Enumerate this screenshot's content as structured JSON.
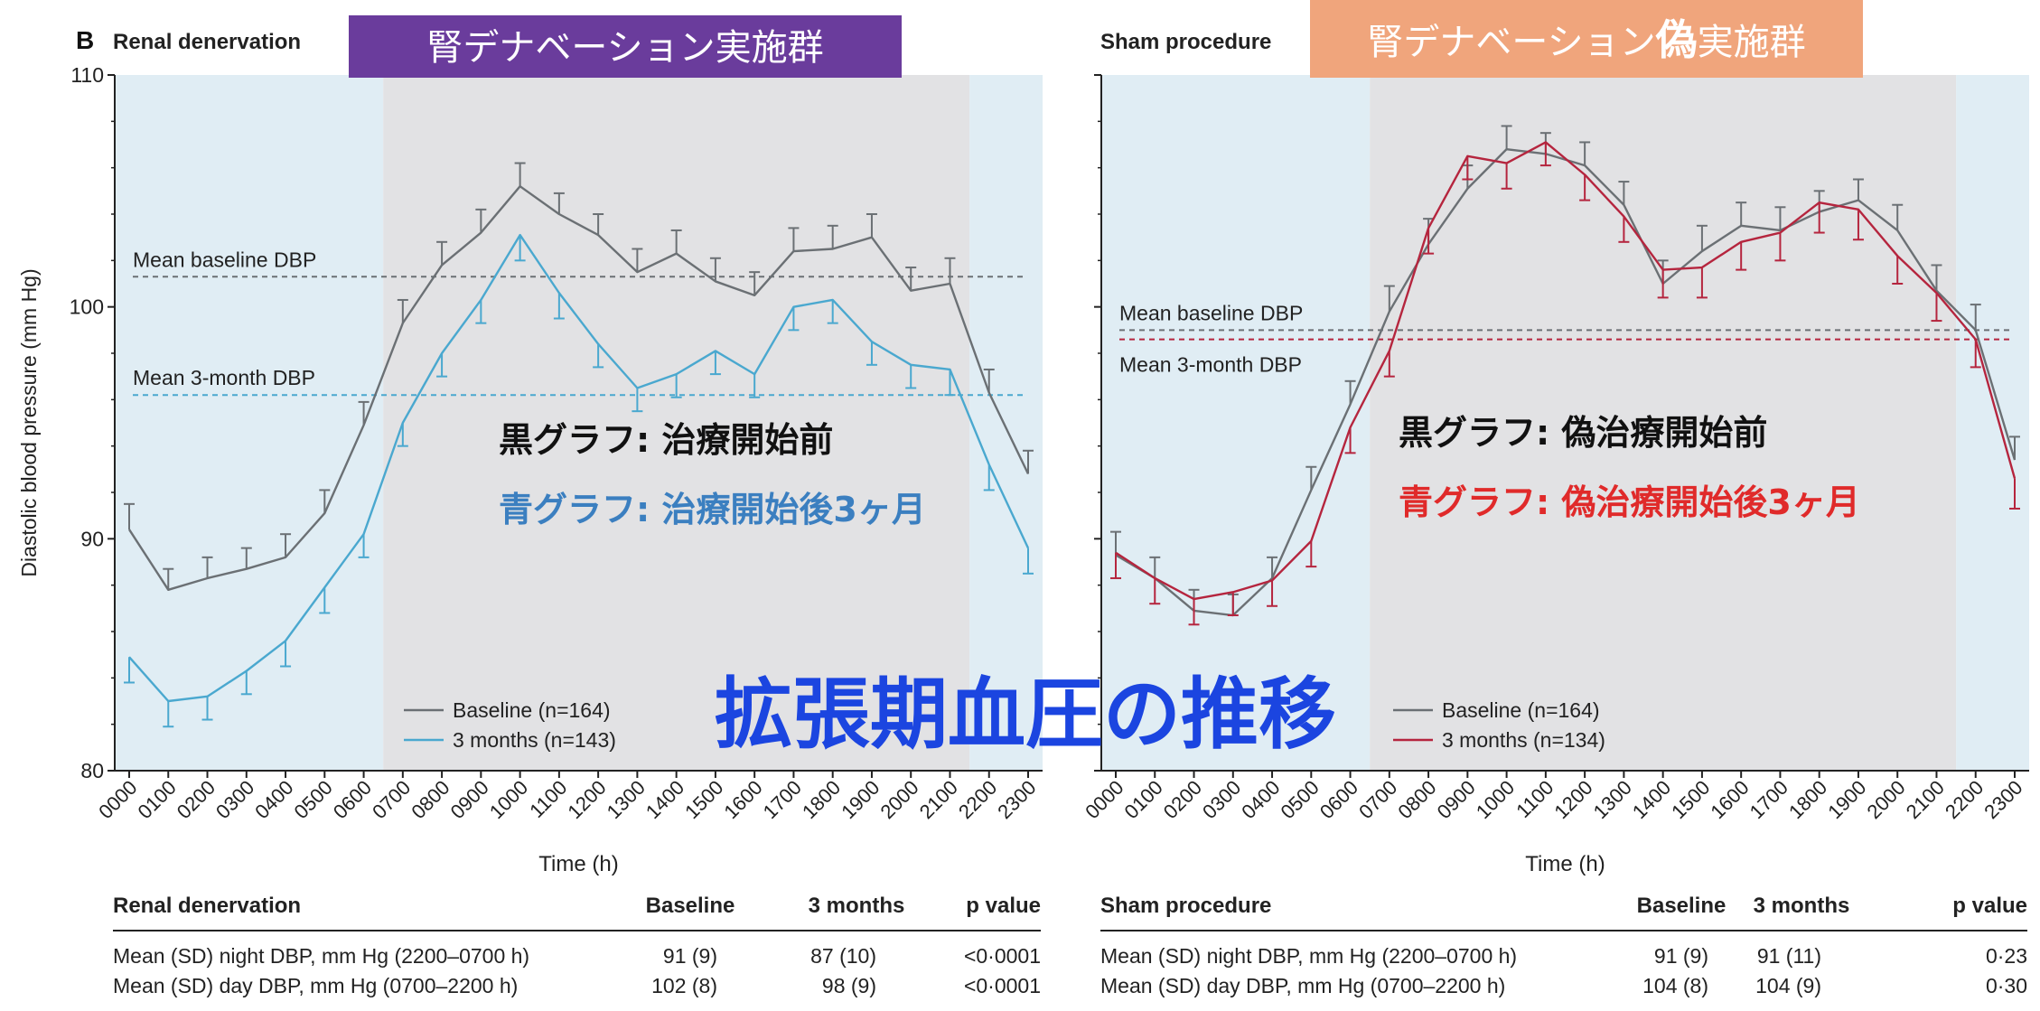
{
  "figure_label": "B",
  "main_title": "拡張期血圧の推移",
  "y_axis_label": "Diastolic blood pressure (mm Hg)",
  "x_axis_label": "Time (h)",
  "colors": {
    "baseline": "#6b7074",
    "rdn_3month": "#4aa8cf",
    "sham_3month": "#b5253e",
    "night_shade": "#e0edf4",
    "day_shade": "#e2e2e4",
    "rdn_banner": "#6a3c9c",
    "sham_banner": "#f0a57c",
    "title_blue": "#1b45e0",
    "rdn_note_blue": "#3b7fc0",
    "sham_note_red": "#e02a2a"
  },
  "panels": [
    {
      "id": "rdn",
      "title": "Renal denervation",
      "banner": "腎デナベーション実施群",
      "notes": [
        "黒グラフ: 治療開始前",
        "青グラフ: 治療開始後3ヶ月"
      ],
      "ref_lines": [
        {
          "label": "Mean baseline DBP",
          "value": 101.3,
          "series": 0
        },
        {
          "label": "Mean 3-month DBP",
          "value": 96.2,
          "series": 1
        }
      ],
      "table": {
        "headers": [
          "Renal denervation",
          "Baseline",
          "3 months",
          "p value"
        ],
        "rows": [
          [
            "Mean (SD) night DBP, mm Hg (2200–0700 h)",
            "91 (9)",
            "87 (10)",
            "<0·0001"
          ],
          [
            "Mean (SD) day DBP, mm Hg (0700–2200 h)",
            "102 (8)",
            "98 (9)",
            "<0·0001"
          ]
        ]
      }
    },
    {
      "id": "sham",
      "title": "Sham procedure",
      "banner_parts": [
        "腎デナベーション",
        "偽",
        "実施群"
      ],
      "notes": [
        "黒グラフ: 偽治療開始前",
        "青グラフ: 偽治療開始後3ヶ月"
      ],
      "ref_lines": [
        {
          "label": "Mean baseline DBP",
          "value": 99.0,
          "series": 0
        },
        {
          "label": "Mean 3-month DBP",
          "value": 98.6,
          "series": 1
        }
      ],
      "table": {
        "headers": [
          "Sham procedure",
          "Baseline",
          "3 months",
          "p value"
        ],
        "rows": [
          [
            "Mean (SD) night DBP, mm Hg (2200–0700 h)",
            "91 (9)",
            "91 (11)",
            "0·23"
          ],
          [
            "Mean (SD) day DBP, mm Hg (0700–2200 h)",
            "104 (8)",
            "104 (9)",
            "0·30"
          ]
        ]
      }
    }
  ],
  "chart_data": [
    {
      "type": "line",
      "title": "Renal denervation",
      "x": [
        "0000",
        "0100",
        "0200",
        "0300",
        "0400",
        "0500",
        "0600",
        "0700",
        "0800",
        "0900",
        "1000",
        "1100",
        "1200",
        "1300",
        "1400",
        "1500",
        "1600",
        "1700",
        "1800",
        "1900",
        "2000",
        "2100",
        "2200",
        "2300"
      ],
      "ylim": [
        80,
        110
      ],
      "yticks": [
        80,
        90,
        100,
        110
      ],
      "day_window": [
        "0700",
        "2200"
      ],
      "xlabel": "Time (h)",
      "ylabel": "Diastolic blood pressure (mm Hg)",
      "series": [
        {
          "name": "Baseline (n=164)",
          "values": [
            90.4,
            87.8,
            88.3,
            88.7,
            89.2,
            91.1,
            94.9,
            99.3,
            101.8,
            103.2,
            105.2,
            104.0,
            103.1,
            101.5,
            102.3,
            101.1,
            100.5,
            102.4,
            102.5,
            103.0,
            100.7,
            101.0,
            96.3,
            92.8
          ],
          "errors": [
            1.1,
            0.9,
            0.9,
            0.9,
            1.0,
            1.0,
            1.0,
            1.0,
            1.0,
            1.0,
            1.0,
            0.9,
            0.9,
            1.0,
            1.0,
            1.0,
            1.0,
            1.0,
            1.0,
            1.0,
            1.0,
            1.1,
            1.0,
            1.0
          ]
        },
        {
          "name": "3 months (n=143)",
          "values": [
            84.9,
            83.0,
            83.2,
            84.3,
            85.6,
            87.9,
            90.2,
            95.0,
            98.0,
            100.3,
            103.1,
            100.6,
            98.4,
            96.5,
            97.1,
            98.1,
            97.1,
            100.0,
            100.3,
            98.5,
            97.5,
            97.3,
            93.2,
            89.6
          ],
          "errors": [
            1.1,
            1.1,
            1.0,
            1.0,
            1.1,
            1.1,
            1.0,
            1.0,
            1.0,
            1.0,
            1.1,
            1.1,
            1.0,
            1.0,
            1.0,
            1.0,
            1.0,
            1.0,
            1.0,
            1.0,
            1.0,
            1.1,
            1.1,
            1.1
          ]
        }
      ],
      "legend": "bottom-left"
    },
    {
      "type": "line",
      "title": "Sham procedure",
      "x": [
        "0000",
        "0100",
        "0200",
        "0300",
        "0400",
        "0500",
        "0600",
        "0700",
        "0800",
        "0900",
        "1000",
        "1100",
        "1200",
        "1300",
        "1400",
        "1500",
        "1600",
        "1700",
        "1800",
        "1900",
        "2000",
        "2100",
        "2200",
        "2300"
      ],
      "ylim": [
        80,
        110
      ],
      "yticks": [
        80,
        90,
        100,
        110
      ],
      "day_window": [
        "0700",
        "2200"
      ],
      "xlabel": "Time (h)",
      "ylabel": "Diastolic blood pressure (mm Hg)",
      "series": [
        {
          "name": "Baseline (n=164)",
          "values": [
            89.3,
            88.3,
            86.9,
            86.7,
            88.3,
            92.1,
            95.8,
            99.8,
            102.7,
            105.1,
            106.8,
            106.6,
            106.1,
            104.4,
            101.0,
            102.4,
            103.5,
            103.3,
            104.1,
            104.6,
            103.3,
            100.7,
            99.0,
            93.4
          ],
          "errors": [
            1.0,
            0.9,
            0.9,
            0.9,
            0.9,
            1.0,
            1.0,
            1.1,
            1.1,
            1.0,
            1.0,
            0.9,
            1.0,
            1.0,
            1.0,
            1.1,
            1.0,
            1.0,
            0.9,
            0.9,
            1.1,
            1.1,
            1.1,
            1.0
          ]
        },
        {
          "name": "3 months (n=134)",
          "values": [
            89.4,
            88.3,
            87.4,
            87.7,
            88.2,
            89.9,
            94.8,
            98.1,
            103.4,
            106.5,
            106.2,
            107.1,
            105.7,
            103.9,
            101.6,
            101.7,
            102.8,
            103.2,
            104.5,
            104.2,
            102.2,
            100.6,
            98.6,
            92.6
          ],
          "errors": [
            1.1,
            1.1,
            1.1,
            1.0,
            1.1,
            1.1,
            1.1,
            1.1,
            1.1,
            1.0,
            1.1,
            1.0,
            1.1,
            1.1,
            1.2,
            1.3,
            1.2,
            1.2,
            1.3,
            1.3,
            1.2,
            1.2,
            1.2,
            1.3
          ]
        }
      ],
      "legend": "bottom-left"
    }
  ]
}
